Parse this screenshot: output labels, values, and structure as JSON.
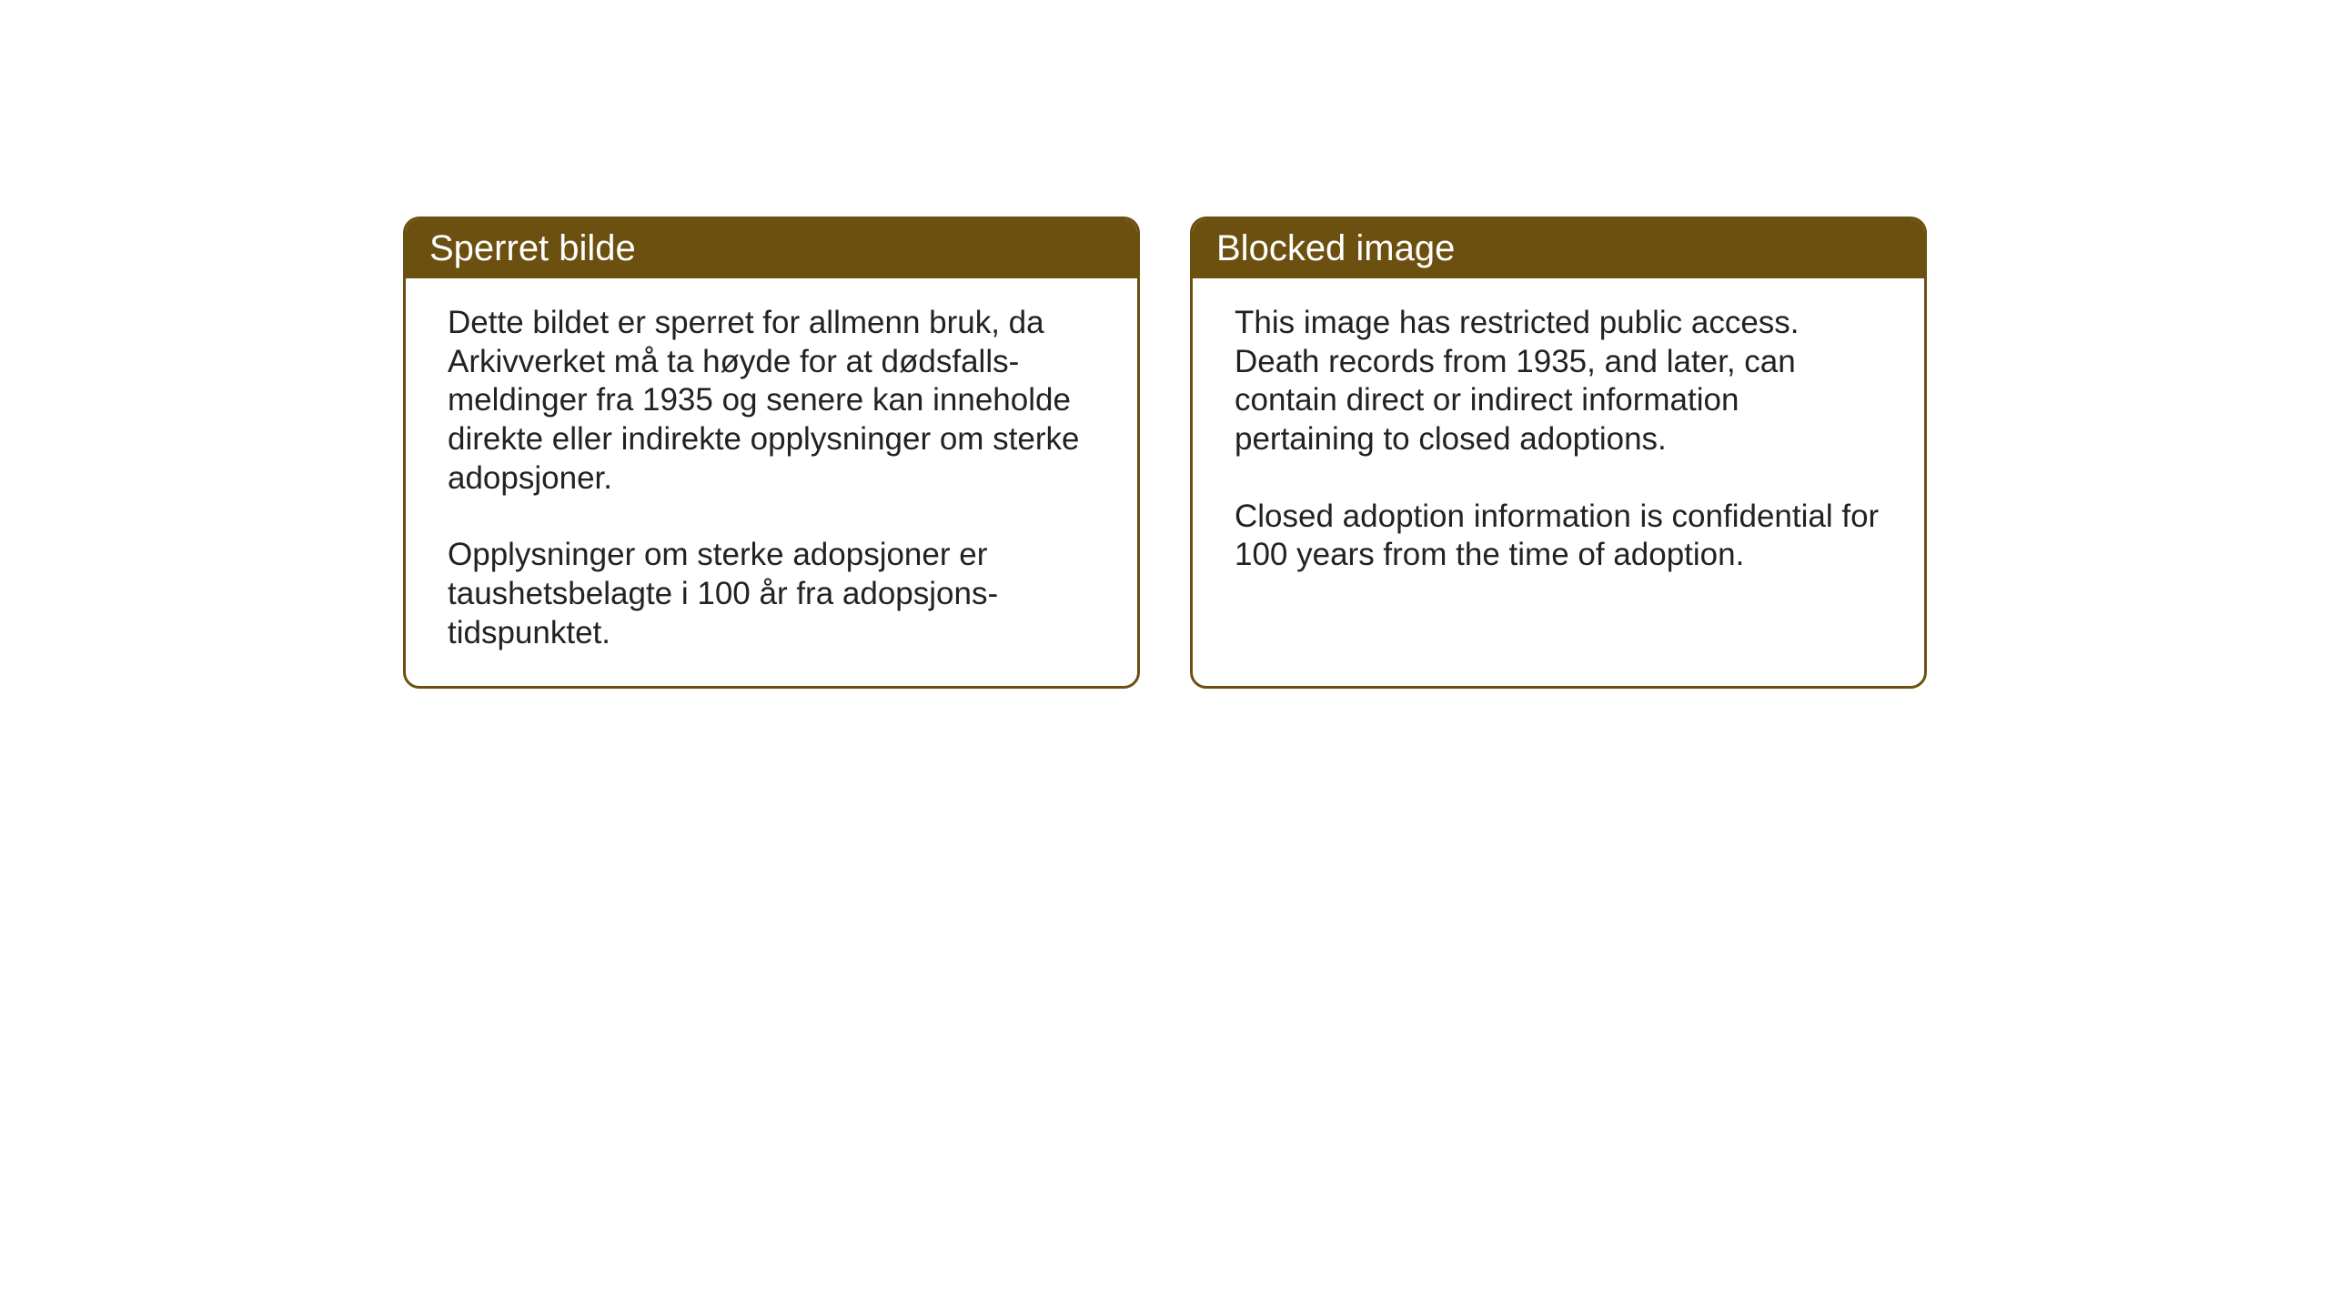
{
  "layout": {
    "background_color": "#ffffff",
    "box_border_color": "#6c5010",
    "header_background_color": "#6c5010",
    "header_text_color": "#ffffff",
    "body_text_color": "#222222",
    "header_fontsize": 40,
    "body_fontsize": 35,
    "border_radius": 18,
    "border_width": 3
  },
  "boxes": [
    {
      "title": "Sperret bilde",
      "paragraphs": [
        "Dette bildet er sperret for allmenn bruk, da Arkivverket må ta høyde for at dødsfalls-meldinger fra 1935 og senere kan inneholde direkte eller indirekte opplysninger om sterke adopsjoner.",
        "Opplysninger om sterke adopsjoner er taushetsbelagte i 100 år fra adopsjons-tidspunktet."
      ]
    },
    {
      "title": "Blocked image",
      "paragraphs": [
        "This image has restricted public access. Death records from 1935, and later, can contain direct or indirect information pertaining to closed adoptions.",
        "Closed adoption information is confidential for 100 years from the time of adoption."
      ]
    }
  ]
}
